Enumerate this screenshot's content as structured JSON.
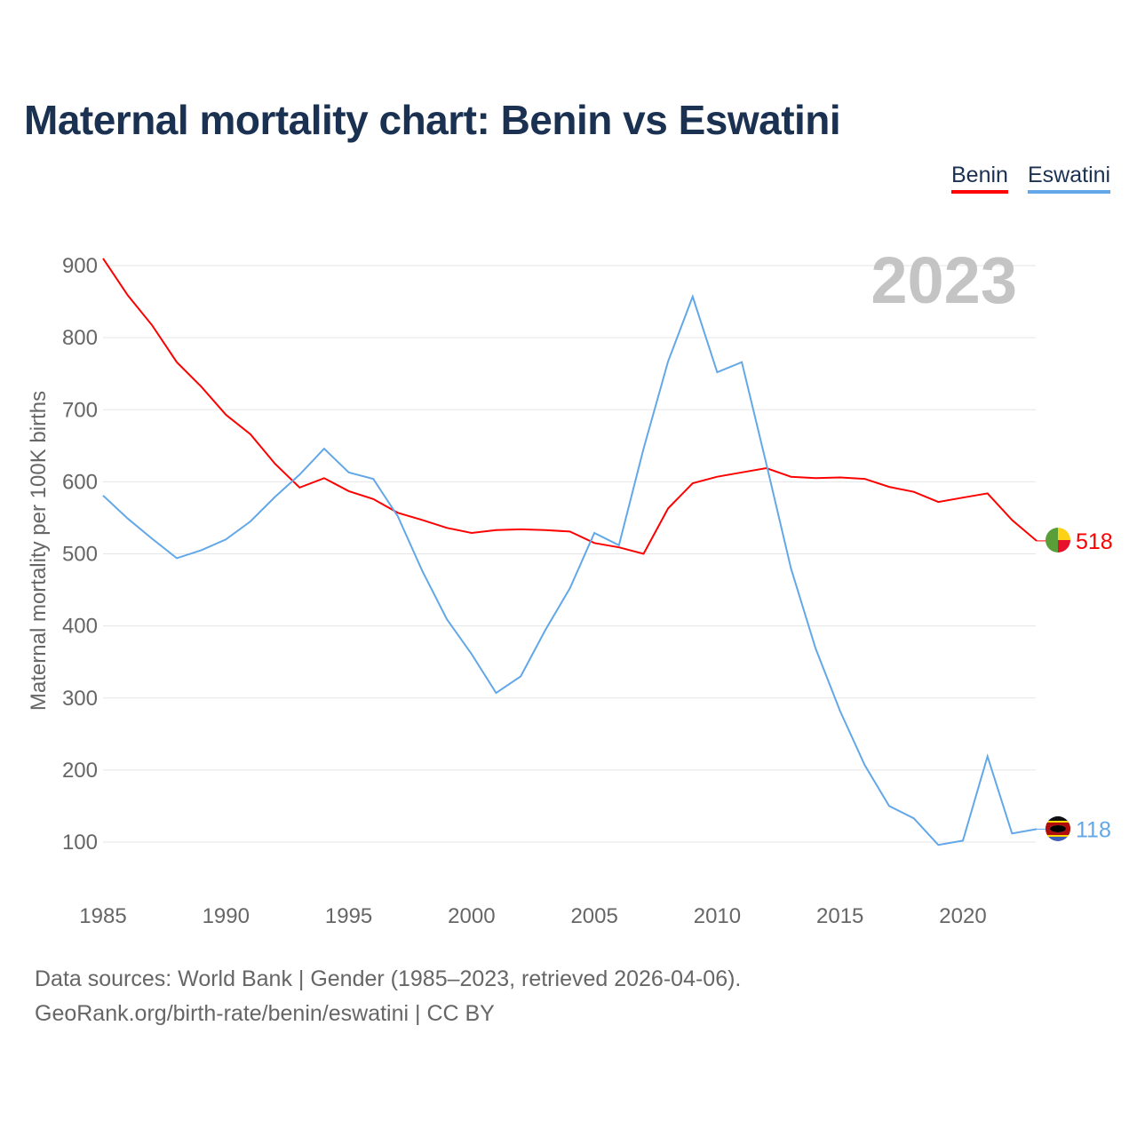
{
  "title": "Maternal mortality chart: Benin vs Eswatini",
  "footer": {
    "line1": "Data sources: World Bank | Gender (1985–2023, retrieved 2026-04-06).",
    "line2": "GeoRank.org/birth-rate/benin/eswatini | CC BY"
  },
  "chart_data": {
    "type": "line",
    "title": "Maternal mortality chart: Benin vs Eswatini",
    "ylabel": "Maternal mortality per 100K births",
    "xlabel": "",
    "year_label": "2023",
    "xlim": [
      1985,
      2023
    ],
    "ylim": [
      0,
      1000
    ],
    "xticks": [
      "1985",
      "1990",
      "1995",
      "2000",
      "2005",
      "2010",
      "2015",
      "2020"
    ],
    "yticks": [
      "100",
      "200",
      "300",
      "400",
      "500",
      "600",
      "700",
      "800",
      "900"
    ],
    "grid": true,
    "legend_position": "top-right",
    "x": [
      1985,
      1986,
      1987,
      1988,
      1989,
      1990,
      1991,
      1992,
      1993,
      1994,
      1995,
      1996,
      1997,
      1998,
      1999,
      2000,
      2001,
      2002,
      2003,
      2004,
      2005,
      2006,
      2007,
      2008,
      2009,
      2010,
      2011,
      2012,
      2013,
      2014,
      2015,
      2016,
      2017,
      2018,
      2019,
      2020,
      2021,
      2022,
      2023
    ],
    "series": [
      {
        "name": "Benin",
        "color": "#ff0000",
        "end_label": "518",
        "values": [
          910,
          859,
          817,
          766,
          732,
          693,
          666,
          625,
          592,
          605,
          587,
          576,
          557,
          547,
          536,
          529,
          533,
          534,
          533,
          531,
          515,
          509,
          500,
          563,
          598,
          607,
          613,
          619,
          607,
          605,
          606,
          604,
          593,
          586,
          572,
          578,
          584,
          547,
          518
        ]
      },
      {
        "name": "Eswatini",
        "color": "#62a8e8",
        "end_label": "118",
        "values": [
          581,
          549,
          521,
          494,
          505,
          520,
          545,
          579,
          610,
          646,
          613,
          604,
          552,
          476,
          409,
          361,
          307,
          330,
          394,
          452,
          529,
          512,
          646,
          767,
          857,
          752,
          766,
          625,
          480,
          369,
          282,
          207,
          150,
          133,
          96,
          102,
          219,
          112,
          118
        ]
      }
    ]
  }
}
